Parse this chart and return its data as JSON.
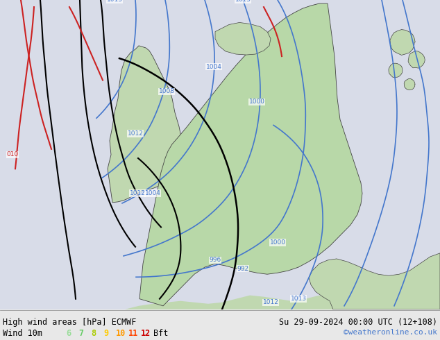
{
  "title_left": "High wind areas [hPa] ECMWF",
  "title_right": "Su 29-09-2024 00:00 UTC (12+108)",
  "subtitle_left": "Wind 10m",
  "subtitle_right": "©weatheronline.co.uk",
  "bft_labels": [
    "6",
    "7",
    "8",
    "9",
    "10",
    "11",
    "12",
    "Bft"
  ],
  "bft_colors": [
    "#99cc99",
    "#66bb66",
    "#ffcc00",
    "#ff9900",
    "#ff6600",
    "#ff3300",
    "#cc0000",
    "#000000"
  ],
  "bg_color": "#e8e8e8",
  "land_color": "#c8e6c8",
  "land_dark_color": "#2d4a1e",
  "sea_color": "#d0d8e8",
  "contour_blue": "#4477cc",
  "contour_black": "#000000",
  "contour_red": "#cc2222",
  "fig_width": 6.34,
  "fig_height": 4.9
}
